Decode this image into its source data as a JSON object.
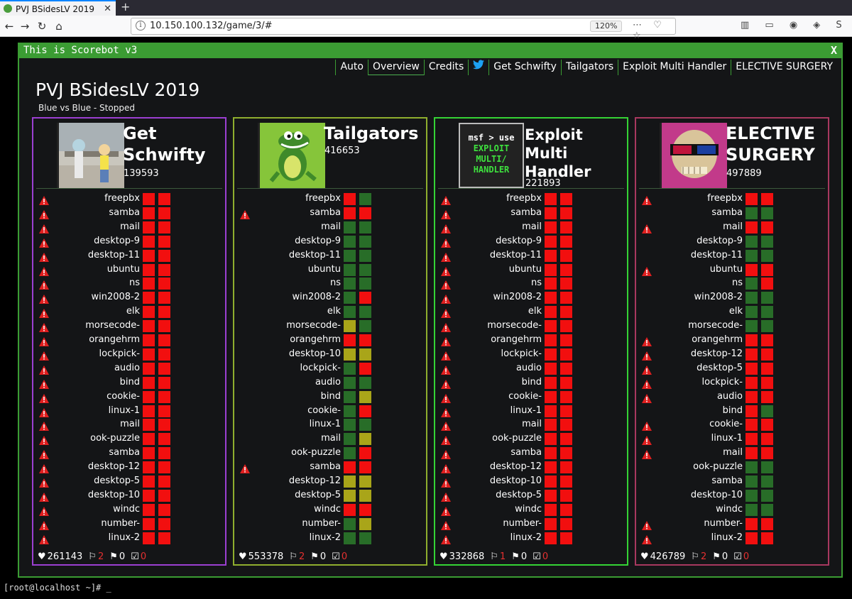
{
  "browser": {
    "tab_title": "PVJ BSidesLV 2019",
    "url": "10.150.100.132/game/3/#",
    "zoom": "120%"
  },
  "app": {
    "title": "This is Scorebot v3",
    "close_label": "X",
    "menu": [
      "Auto",
      "Overview",
      "Credits",
      "Get Schwifty",
      "Tailgators",
      "Exploit Multi Handler",
      "ELECTIVE SURGERY"
    ],
    "active_menu": "Overview",
    "game_title": "PVJ BSidesLV 2019",
    "game_subtitle": "Blue vs Blue - Stopped"
  },
  "colors": {
    "red": "#f20f0f",
    "green": "#286d28",
    "yellow": "#a9a519",
    "accent": "#3b9c33"
  },
  "teams": [
    {
      "name_line1": "Get",
      "name_line2": "Schwifty",
      "name_line3": "",
      "score": "139593",
      "border": "#9b3fd1",
      "footer": {
        "health": "261143",
        "flags_lost": "2",
        "flags_captured": "0",
        "tickets": "0"
      },
      "services": [
        {
          "name": "freepbx",
          "warn": true,
          "a": "red",
          "b": "red"
        },
        {
          "name": "samba",
          "warn": true,
          "a": "red",
          "b": "red"
        },
        {
          "name": "mail",
          "warn": true,
          "a": "red",
          "b": "red"
        },
        {
          "name": "desktop-9",
          "warn": true,
          "a": "red",
          "b": "red"
        },
        {
          "name": "desktop-11",
          "warn": true,
          "a": "red",
          "b": "red"
        },
        {
          "name": "ubuntu",
          "warn": true,
          "a": "red",
          "b": "red"
        },
        {
          "name": "ns",
          "warn": true,
          "a": "red",
          "b": "red"
        },
        {
          "name": "win2008-2",
          "warn": true,
          "a": "red",
          "b": "red"
        },
        {
          "name": "elk",
          "warn": true,
          "a": "red",
          "b": "red"
        },
        {
          "name": "morsecode-",
          "warn": true,
          "a": "red",
          "b": "red"
        },
        {
          "name": "orangehrm",
          "warn": true,
          "a": "red",
          "b": "red"
        },
        {
          "name": "lockpick-",
          "warn": true,
          "a": "red",
          "b": "red"
        },
        {
          "name": "audio",
          "warn": true,
          "a": "red",
          "b": "red"
        },
        {
          "name": "bind",
          "warn": true,
          "a": "red",
          "b": "red"
        },
        {
          "name": "cookie-",
          "warn": true,
          "a": "red",
          "b": "red"
        },
        {
          "name": "linux-1",
          "warn": true,
          "a": "red",
          "b": "red"
        },
        {
          "name": "mail",
          "warn": true,
          "a": "red",
          "b": "red"
        },
        {
          "name": "ook-puzzle",
          "warn": true,
          "a": "red",
          "b": "red"
        },
        {
          "name": "samba",
          "warn": true,
          "a": "red",
          "b": "red"
        },
        {
          "name": "desktop-12",
          "warn": true,
          "a": "red",
          "b": "red"
        },
        {
          "name": "desktop-5",
          "warn": true,
          "a": "red",
          "b": "red"
        },
        {
          "name": "desktop-10",
          "warn": true,
          "a": "red",
          "b": "red"
        },
        {
          "name": "windc",
          "warn": true,
          "a": "red",
          "b": "red"
        },
        {
          "name": "number-",
          "warn": true,
          "a": "red",
          "b": "red"
        },
        {
          "name": "linux-2",
          "warn": true,
          "a": "red",
          "b": "red"
        }
      ]
    },
    {
      "name_line1": "Tailgators",
      "name_line2": "",
      "name_line3": "",
      "score": "416653",
      "border": "#8fae2e",
      "footer": {
        "health": "553378",
        "flags_lost": "2",
        "flags_captured": "0",
        "tickets": "0"
      },
      "services": [
        {
          "name": "freepbx",
          "warn": false,
          "a": "red",
          "b": "green"
        },
        {
          "name": "samba",
          "warn": true,
          "a": "red",
          "b": "red"
        },
        {
          "name": "mail",
          "warn": false,
          "a": "green",
          "b": "green"
        },
        {
          "name": "desktop-9",
          "warn": false,
          "a": "green",
          "b": "green"
        },
        {
          "name": "desktop-11",
          "warn": false,
          "a": "green",
          "b": "green"
        },
        {
          "name": "ubuntu",
          "warn": false,
          "a": "green",
          "b": "green"
        },
        {
          "name": "ns",
          "warn": false,
          "a": "green",
          "b": "green"
        },
        {
          "name": "win2008-2",
          "warn": false,
          "a": "green",
          "b": "red"
        },
        {
          "name": "elk",
          "warn": false,
          "a": "green",
          "b": "green"
        },
        {
          "name": "morsecode-",
          "warn": false,
          "a": "yellow",
          "b": "green"
        },
        {
          "name": "orangehrm",
          "warn": false,
          "a": "red",
          "b": "red"
        },
        {
          "name": "desktop-10",
          "warn": false,
          "a": "yellow",
          "b": "yellow"
        },
        {
          "name": "lockpick-",
          "warn": false,
          "a": "green",
          "b": "red"
        },
        {
          "name": "audio",
          "warn": false,
          "a": "green",
          "b": "green"
        },
        {
          "name": "bind",
          "warn": false,
          "a": "green",
          "b": "yellow"
        },
        {
          "name": "cookie-",
          "warn": false,
          "a": "green",
          "b": "red"
        },
        {
          "name": "linux-1",
          "warn": false,
          "a": "green",
          "b": "green"
        },
        {
          "name": "mail",
          "warn": false,
          "a": "green",
          "b": "yellow"
        },
        {
          "name": "ook-puzzle",
          "warn": false,
          "a": "green",
          "b": "red"
        },
        {
          "name": "samba",
          "warn": true,
          "a": "red",
          "b": "red"
        },
        {
          "name": "desktop-12",
          "warn": false,
          "a": "yellow",
          "b": "yellow"
        },
        {
          "name": "desktop-5",
          "warn": false,
          "a": "yellow",
          "b": "yellow"
        },
        {
          "name": "windc",
          "warn": false,
          "a": "red",
          "b": "red"
        },
        {
          "name": "number-",
          "warn": false,
          "a": "green",
          "b": "yellow"
        },
        {
          "name": "linux-2",
          "warn": false,
          "a": "green",
          "b": "green"
        }
      ]
    },
    {
      "name_line1": "Exploit",
      "name_line2": "Multi",
      "name_line3": "Handler",
      "score": "221893",
      "border": "#35d335",
      "footer": {
        "health": "332868",
        "flags_lost": "1",
        "flags_captured": "0",
        "tickets": "0"
      },
      "logo_text": [
        "msf > use",
        "EXPLOIT",
        "MULTI/",
        "HANDLER"
      ],
      "services": [
        {
          "name": "freepbx",
          "warn": true,
          "a": "red",
          "b": "red"
        },
        {
          "name": "samba",
          "warn": true,
          "a": "red",
          "b": "red"
        },
        {
          "name": "mail",
          "warn": true,
          "a": "red",
          "b": "red"
        },
        {
          "name": "desktop-9",
          "warn": true,
          "a": "red",
          "b": "red"
        },
        {
          "name": "desktop-11",
          "warn": true,
          "a": "red",
          "b": "red"
        },
        {
          "name": "ubuntu",
          "warn": true,
          "a": "red",
          "b": "red"
        },
        {
          "name": "ns",
          "warn": true,
          "a": "red",
          "b": "red"
        },
        {
          "name": "win2008-2",
          "warn": true,
          "a": "red",
          "b": "red"
        },
        {
          "name": "elk",
          "warn": true,
          "a": "red",
          "b": "red"
        },
        {
          "name": "morsecode-",
          "warn": true,
          "a": "red",
          "b": "red"
        },
        {
          "name": "orangehrm",
          "warn": true,
          "a": "red",
          "b": "red"
        },
        {
          "name": "lockpick-",
          "warn": true,
          "a": "red",
          "b": "red"
        },
        {
          "name": "audio",
          "warn": true,
          "a": "red",
          "b": "red"
        },
        {
          "name": "bind",
          "warn": true,
          "a": "red",
          "b": "red"
        },
        {
          "name": "cookie-",
          "warn": true,
          "a": "red",
          "b": "red"
        },
        {
          "name": "linux-1",
          "warn": true,
          "a": "red",
          "b": "red"
        },
        {
          "name": "mail",
          "warn": true,
          "a": "red",
          "b": "red"
        },
        {
          "name": "ook-puzzle",
          "warn": true,
          "a": "red",
          "b": "red"
        },
        {
          "name": "samba",
          "warn": true,
          "a": "red",
          "b": "red"
        },
        {
          "name": "desktop-12",
          "warn": true,
          "a": "red",
          "b": "red"
        },
        {
          "name": "desktop-10",
          "warn": true,
          "a": "red",
          "b": "red"
        },
        {
          "name": "desktop-5",
          "warn": true,
          "a": "red",
          "b": "red"
        },
        {
          "name": "windc",
          "warn": true,
          "a": "red",
          "b": "red"
        },
        {
          "name": "number-",
          "warn": true,
          "a": "red",
          "b": "red"
        },
        {
          "name": "linux-2",
          "warn": true,
          "a": "red",
          "b": "red"
        }
      ]
    },
    {
      "name_line1": "ELECTIVE",
      "name_line2": "SURGERY",
      "name_line3": "",
      "score": "497889",
      "border": "#a8385f",
      "footer": {
        "health": "426789",
        "flags_lost": "2",
        "flags_captured": "0",
        "tickets": "0"
      },
      "services": [
        {
          "name": "freepbx",
          "warn": true,
          "a": "red",
          "b": "red"
        },
        {
          "name": "samba",
          "warn": false,
          "a": "green",
          "b": "green"
        },
        {
          "name": "mail",
          "warn": true,
          "a": "red",
          "b": "red"
        },
        {
          "name": "desktop-9",
          "warn": false,
          "a": "green",
          "b": "green"
        },
        {
          "name": "desktop-11",
          "warn": false,
          "a": "green",
          "b": "green"
        },
        {
          "name": "ubuntu",
          "warn": true,
          "a": "red",
          "b": "red"
        },
        {
          "name": "ns",
          "warn": false,
          "a": "green",
          "b": "red"
        },
        {
          "name": "win2008-2",
          "warn": false,
          "a": "green",
          "b": "green"
        },
        {
          "name": "elk",
          "warn": false,
          "a": "green",
          "b": "green"
        },
        {
          "name": "morsecode-",
          "warn": false,
          "a": "green",
          "b": "green"
        },
        {
          "name": "orangehrm",
          "warn": true,
          "a": "red",
          "b": "red"
        },
        {
          "name": "desktop-12",
          "warn": true,
          "a": "red",
          "b": "red"
        },
        {
          "name": "desktop-5",
          "warn": true,
          "a": "red",
          "b": "red"
        },
        {
          "name": "lockpick-",
          "warn": true,
          "a": "red",
          "b": "red"
        },
        {
          "name": "audio",
          "warn": true,
          "a": "red",
          "b": "red"
        },
        {
          "name": "bind",
          "warn": false,
          "a": "red",
          "b": "green"
        },
        {
          "name": "cookie-",
          "warn": true,
          "a": "red",
          "b": "red"
        },
        {
          "name": "linux-1",
          "warn": true,
          "a": "red",
          "b": "red"
        },
        {
          "name": "mail",
          "warn": true,
          "a": "red",
          "b": "red"
        },
        {
          "name": "ook-puzzle",
          "warn": false,
          "a": "green",
          "b": "green"
        },
        {
          "name": "samba",
          "warn": false,
          "a": "green",
          "b": "green"
        },
        {
          "name": "desktop-10",
          "warn": false,
          "a": "green",
          "b": "green"
        },
        {
          "name": "windc",
          "warn": false,
          "a": "green",
          "b": "green"
        },
        {
          "name": "number-",
          "warn": true,
          "a": "red",
          "b": "red"
        },
        {
          "name": "linux-2",
          "warn": true,
          "a": "red",
          "b": "red"
        }
      ]
    }
  ],
  "terminal": {
    "prompt": "[root@localhost ~]# _"
  }
}
